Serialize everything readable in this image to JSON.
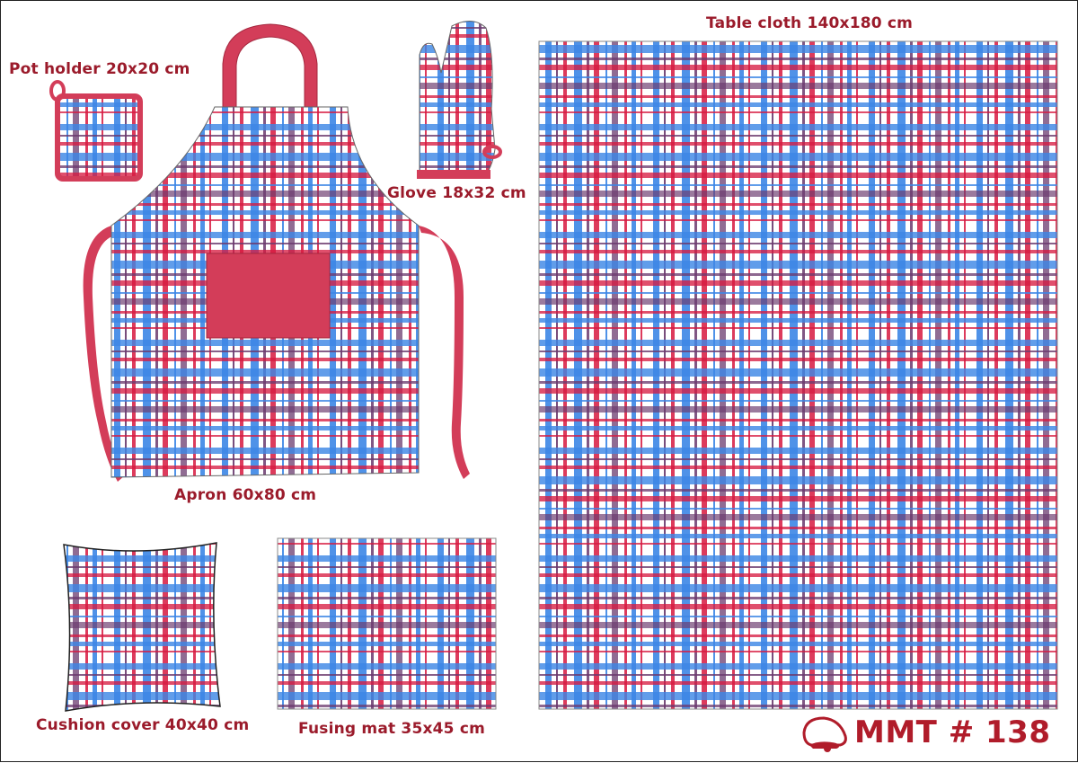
{
  "colors": {
    "red": "#d7193f",
    "blue": "#3c86e6",
    "purple": "#6b3a6e",
    "trim": "#d33d59",
    "label": "#9b1b2b",
    "background": "#ffffff"
  },
  "labels": {
    "pot_holder": "Pot holder 20x20 cm",
    "glove": "Glove 18x32 cm",
    "apron": "Apron 60x80 cm",
    "cushion_cover": "Cushion cover 40x40 cm",
    "fusing_mat": "Fusing mat 35x45 cm",
    "table_cloth": "Table cloth 140x180 cm"
  },
  "brand": {
    "text": "MMT # 138",
    "logo_icon": "bell-hat-logo-icon"
  }
}
